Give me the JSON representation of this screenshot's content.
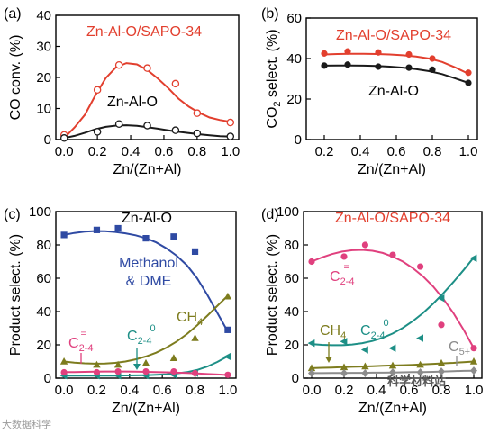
{
  "watermarks": {
    "left": "大数据科学",
    "right": "科学材料站"
  },
  "chart_data": [
    {
      "id": "a",
      "type": "line",
      "panel_label": "(a)",
      "xlabel": "Zn/(Zn+Al)",
      "ylabel": "CO conv. (%)",
      "xlim": [
        -0.05,
        1.05
      ],
      "ylim": [
        0,
        40
      ],
      "xticks": [
        0.0,
        0.2,
        0.4,
        0.6,
        0.8,
        1.0
      ],
      "xtick_labels": [
        "0.0",
        "0.2",
        "0.4",
        "0.6",
        "0.8",
        "1.0"
      ],
      "yticks": [
        0,
        10,
        20,
        30,
        40
      ],
      "ytick_labels": [
        "0",
        "10",
        "20",
        "30",
        "40"
      ],
      "series": [
        {
          "name": "Zn-Al-O/SAPO-34",
          "color": "#e23f2e",
          "marker": "circle-open",
          "x": [
            0.0,
            0.2,
            0.33,
            0.5,
            0.67,
            0.8,
            1.0
          ],
          "y": [
            1.5,
            16,
            24,
            23,
            18,
            8.5,
            5.5
          ],
          "fit_y": [
            0.5,
            3.9,
            8.0,
            14.2,
            19.8,
            23.3,
            24.6,
            24.2,
            22.4,
            19.7,
            16.6,
            13.2,
            10.6,
            8.6,
            7.1,
            6.3,
            5.7
          ]
        },
        {
          "name": "Zn-Al-O",
          "color": "#1a1a1a",
          "marker": "circle-open",
          "x": [
            0.0,
            0.2,
            0.33,
            0.5,
            0.67,
            0.8,
            1.0
          ],
          "y": [
            0.5,
            2.5,
            5.0,
            4.5,
            3.0,
            2.0,
            1.0
          ],
          "fit_y": [
            0.5,
            1.2,
            2.2,
            3.3,
            4.1,
            4.5,
            4.6,
            4.4,
            4.0,
            3.5,
            3.0,
            2.5,
            2.1,
            1.7,
            1.4,
            1.1,
            1.0
          ]
        }
      ]
    },
    {
      "id": "b",
      "type": "line",
      "panel_label": "(b)",
      "xlabel": "Zn/(Zn+Al)",
      "ylabel": "CO2 select. (%)",
      "xlim": [
        0.1,
        1.05
      ],
      "ylim": [
        0,
        60
      ],
      "xticks": [
        0.2,
        0.4,
        0.6,
        0.8,
        1.0
      ],
      "xtick_labels": [
        "0.2",
        "0.4",
        "0.6",
        "0.8",
        "1.0"
      ],
      "yticks": [
        0,
        20,
        40,
        60
      ],
      "ytick_labels": [
        "0",
        "20",
        "40",
        "60"
      ],
      "series": [
        {
          "name": "Zn-Al-O/SAPO-34",
          "color": "#e23f2e",
          "marker": "circle",
          "x": [
            0.2,
            0.33,
            0.5,
            0.67,
            0.8,
            1.0
          ],
          "y": [
            42.5,
            43.5,
            43,
            42,
            40,
            33
          ],
          "fit_y": [
            42,
            42.2,
            42.3,
            42.3,
            42.2,
            42.0,
            41.6,
            41.0,
            40.0,
            38.3,
            35.6,
            32.5
          ]
        },
        {
          "name": "Zn-Al-O",
          "color": "#1a1a1a",
          "marker": "circle",
          "x": [
            0.2,
            0.33,
            0.5,
            0.67,
            0.8,
            1.0
          ],
          "y": [
            36.5,
            37,
            36,
            35.5,
            34.5,
            28
          ],
          "fit_y": [
            36.5,
            36.6,
            36.6,
            36.5,
            36.3,
            36.0,
            35.5,
            34.8,
            33.8,
            32.3,
            30.2,
            28.0
          ]
        }
      ]
    },
    {
      "id": "c",
      "type": "line",
      "panel_label": "(c)",
      "xlabel": "Zn/(Zn+Al)",
      "ylabel": "Product select. (%)",
      "title": "Zn-Al-O",
      "xlim": [
        -0.05,
        1.05
      ],
      "ylim": [
        0,
        100
      ],
      "xticks": [
        0.0,
        0.2,
        0.4,
        0.6,
        0.8,
        1.0
      ],
      "xtick_labels": [
        "0.0",
        "0.2",
        "0.4",
        "0.6",
        "0.8",
        "1.0"
      ],
      "yticks": [
        0,
        20,
        40,
        60,
        80,
        100
      ],
      "ytick_labels": [
        "0",
        "20",
        "40",
        "60",
        "80",
        "100"
      ],
      "series": [
        {
          "name": "Methanol & DME",
          "color": "#2f4aa3",
          "marker": "square",
          "x": [
            0.0,
            0.2,
            0.33,
            0.5,
            0.67,
            0.8,
            1.0
          ],
          "y": [
            86,
            89,
            90,
            84,
            85,
            76,
            29
          ],
          "fit_y": [
            86,
            87.2,
            88,
            88.3,
            88.2,
            87.8,
            87,
            85.8,
            84,
            81.5,
            78,
            73.5,
            67.8,
            60,
            50,
            39,
            28
          ]
        },
        {
          "name": "CH4",
          "color": "#7d7c1e",
          "marker": "triangle",
          "x": [
            0.0,
            0.2,
            0.33,
            0.5,
            0.67,
            0.8,
            1.0
          ],
          "y": [
            10,
            8,
            8,
            9,
            12,
            24,
            49
          ],
          "fit_y": [
            10,
            9.3,
            8.9,
            8.7,
            8.8,
            9.2,
            10,
            11.3,
            13,
            15.3,
            18.3,
            22,
            26.5,
            31.7,
            37.5,
            43.5,
            49.5
          ]
        },
        {
          "name": "C2-4 paraffins",
          "color": "#1d8f86",
          "marker": "triangle-left",
          "x": [
            0.0,
            0.2,
            0.33,
            0.5,
            0.67,
            0.8,
            1.0
          ],
          "y": [
            1.5,
            1.5,
            1.5,
            1.5,
            2,
            3,
            13
          ],
          "fit_y": [
            1.5,
            1.5,
            1.5,
            1.5,
            1.5,
            1.5,
            1.6,
            1.7,
            1.8,
            2.0,
            2.3,
            2.8,
            3.6,
            4.9,
            7.0,
            9.8,
            13.2
          ]
        },
        {
          "name": "C2-4 olefins",
          "color": "#e0407e",
          "marker": "circle",
          "x": [
            0.0,
            0.2,
            0.33,
            0.5,
            0.67,
            0.8,
            1.0
          ],
          "y": [
            3.5,
            3.5,
            4,
            4,
            4,
            3,
            2
          ],
          "fit_y": [
            3.6,
            3.7,
            3.8,
            3.9,
            4.0,
            4.0,
            4.0,
            3.9,
            3.8,
            3.7,
            3.5,
            3.3,
            3.1,
            2.8,
            2.5,
            2.2,
            1.9
          ]
        }
      ],
      "annotations": {
        "methanol_line1": "Methanol",
        "methanol_line2": "& DME",
        "ch4": "CH4",
        "c24_olefin": "C2-4=",
        "c24_paraffin": "C2-40"
      }
    },
    {
      "id": "d",
      "type": "line",
      "panel_label": "(d)",
      "xlabel": "Zn/(Zn+Al)",
      "ylabel": "Product select. (%)",
      "title": "Zn-Al-O/SAPO-34",
      "xlim": [
        -0.05,
        1.05
      ],
      "ylim": [
        0,
        100
      ],
      "xticks": [
        0.0,
        0.2,
        0.4,
        0.6,
        0.8,
        1.0
      ],
      "xtick_labels": [
        "0.0",
        "0.2",
        "0.4",
        "0.6",
        "0.8",
        "1.0"
      ],
      "yticks": [
        0,
        20,
        40,
        60,
        80,
        100
      ],
      "ytick_labels": [
        "0",
        "20",
        "40",
        "60",
        "80",
        "100"
      ],
      "series": [
        {
          "name": "C2-4 olefins",
          "color": "#e0407e",
          "marker": "circle",
          "x": [
            0.0,
            0.2,
            0.33,
            0.5,
            0.67,
            0.8,
            1.0
          ],
          "y": [
            70,
            73,
            80,
            74,
            67,
            32,
            18
          ],
          "fit_y": [
            70,
            72.5,
            74.5,
            76,
            76.8,
            77,
            76.5,
            75.2,
            73,
            70,
            66,
            61,
            55,
            47.5,
            39,
            29,
            18
          ]
        },
        {
          "name": "C2-4 paraffins",
          "color": "#1d8f86",
          "marker": "triangle-left",
          "x": [
            0.0,
            0.2,
            0.33,
            0.5,
            0.67,
            0.8,
            1.0
          ],
          "y": [
            21,
            22,
            17,
            18,
            24,
            48,
            72
          ],
          "fit_y": [
            20.5,
            20,
            19.8,
            19.8,
            20.2,
            21,
            22.3,
            24.2,
            26.8,
            30.2,
            34.3,
            39.2,
            44.8,
            51,
            57.8,
            65,
            72.5
          ]
        },
        {
          "name": "CH4",
          "color": "#7d7c1e",
          "marker": "triangle",
          "x": [
            0.0,
            0.2,
            0.33,
            0.5,
            0.67,
            0.8,
            1.0
          ],
          "y": [
            6,
            6.5,
            7,
            7.5,
            8,
            9,
            10
          ],
          "fit_y": [
            6,
            6.2,
            6.4,
            6.6,
            6.8,
            7,
            7.2,
            7.4,
            7.6,
            7.8,
            8,
            8.3,
            8.6,
            8.9,
            9.2,
            9.6,
            10
          ]
        },
        {
          "name": "C5+",
          "color": "#8c8c8c",
          "marker": "diamond",
          "x": [
            0.0,
            0.2,
            0.33,
            0.5,
            0.67,
            0.8,
            1.0
          ],
          "y": [
            3,
            3,
            3,
            3.5,
            3.5,
            4,
            4.5
          ],
          "fit_y": [
            3,
            3,
            3.1,
            3.1,
            3.2,
            3.2,
            3.3,
            3.3,
            3.4,
            3.5,
            3.6,
            3.7,
            3.8,
            4.0,
            4.2,
            4.4,
            4.5
          ]
        }
      ],
      "annotations": {
        "c24_olefin": "C2-4=",
        "ch4": "CH4",
        "c24_paraffin": "C2-40",
        "c5": "C5+"
      }
    }
  ]
}
